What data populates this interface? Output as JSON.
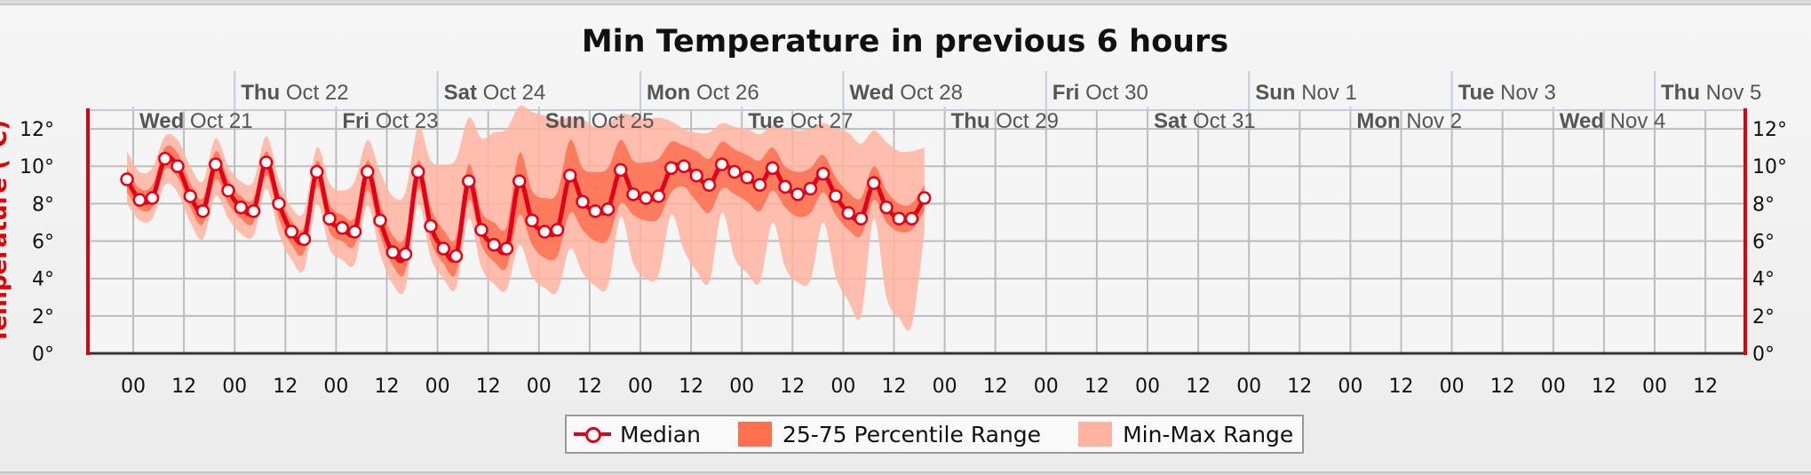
{
  "chart_data": {
    "type": "line",
    "title": "Min Temperature in previous 6 hours",
    "ylabel": "Temperature (°C)",
    "ylim": [
      0,
      13
    ],
    "yticks": [
      0,
      2,
      4,
      6,
      8,
      10,
      12
    ],
    "ytick_suffix": "°",
    "grid": true,
    "legend": "bottom-center",
    "x_hour_labels": [
      "00",
      "12",
      "00",
      "12",
      "00",
      "12",
      "00",
      "12",
      "00",
      "12",
      "00",
      "12",
      "00",
      "12",
      "00",
      "12",
      "00",
      "12",
      "00",
      "12",
      "00",
      "12",
      "00",
      "12",
      "00",
      "12",
      "00",
      "12",
      "00",
      "12",
      "00",
      "12"
    ],
    "x_start": "2020-10-21T00:00",
    "x_step_hours": 6,
    "day_labels": [
      {
        "dow": "Wed",
        "date": "Oct 21"
      },
      {
        "dow": "Thu",
        "date": "Oct 22"
      },
      {
        "dow": "Fri",
        "date": "Oct 23"
      },
      {
        "dow": "Sat",
        "date": "Oct 24"
      },
      {
        "dow": "Sun",
        "date": "Oct 25"
      },
      {
        "dow": "Mon",
        "date": "Oct 26"
      },
      {
        "dow": "Tue",
        "date": "Oct 27"
      },
      {
        "dow": "Wed",
        "date": "Oct 28"
      },
      {
        "dow": "Thu",
        "date": "Oct 29"
      },
      {
        "dow": "Fri",
        "date": "Oct 30"
      },
      {
        "dow": "Sat",
        "date": "Oct 31"
      },
      {
        "dow": "Sun",
        "date": "Nov 1"
      },
      {
        "dow": "Mon",
        "date": "Nov 2"
      },
      {
        "dow": "Tue",
        "date": "Nov 3"
      },
      {
        "dow": "Wed",
        "date": "Nov 4"
      },
      {
        "dow": "Thu",
        "date": "Nov 5"
      }
    ],
    "series": [
      {
        "name": "Median",
        "values": [
          9.3,
          8.2,
          8.3,
          10.4,
          10.0,
          8.4,
          7.6,
          10.1,
          8.7,
          7.8,
          7.6,
          10.2,
          8.0,
          6.5,
          6.1,
          9.7,
          7.2,
          6.7,
          6.5,
          9.7,
          7.1,
          5.4,
          5.3,
          9.7,
          6.8,
          5.6,
          5.2,
          9.2,
          6.6,
          5.8,
          5.6,
          9.2,
          7.1,
          6.5,
          6.6,
          9.5,
          8.1,
          7.6,
          7.7,
          9.8,
          8.5,
          8.3,
          8.4,
          9.9,
          10.0,
          9.5,
          9.0,
          10.1,
          9.7,
          9.4,
          9.0,
          9.9,
          8.9,
          8.5,
          8.8,
          9.6,
          8.4,
          7.5,
          7.2,
          9.1,
          7.8,
          7.2,
          7.2,
          8.3
        ]
      },
      {
        "name": "25-75 Percentile Range",
        "low": [
          8.6,
          7.7,
          7.8,
          9.8,
          9.4,
          7.8,
          6.9,
          9.3,
          8.0,
          7.2,
          7.0,
          9.5,
          7.2,
          5.8,
          5.4,
          8.9,
          6.5,
          6.0,
          5.8,
          8.7,
          6.3,
          4.7,
          4.4,
          8.8,
          6.0,
          4.8,
          4.3,
          8.2,
          5.8,
          4.9,
          4.6,
          7.4,
          5.8,
          5.1,
          5.2,
          7.5,
          6.6,
          6.0,
          6.1,
          8.0,
          7.4,
          7.1,
          7.2,
          8.6,
          8.9,
          8.1,
          7.5,
          8.8,
          8.5,
          8.1,
          7.6,
          8.7,
          7.8,
          7.3,
          7.5,
          8.6,
          7.4,
          6.6,
          6.3,
          8.2,
          7.0,
          6.5,
          6.6,
          7.6
        ],
        "high": [
          9.9,
          8.8,
          9.0,
          11.0,
          10.7,
          9.1,
          8.3,
          10.8,
          9.3,
          8.4,
          8.3,
          10.8,
          8.6,
          7.1,
          6.8,
          10.3,
          8.0,
          7.4,
          7.3,
          10.3,
          8.0,
          6.3,
          6.3,
          10.3,
          7.8,
          6.6,
          6.2,
          10.1,
          7.6,
          7.0,
          6.8,
          10.7,
          8.7,
          8.3,
          8.6,
          11.4,
          9.9,
          9.7,
          9.9,
          11.4,
          10.3,
          10.2,
          10.4,
          11.3,
          11.1,
          10.8,
          10.4,
          11.3,
          10.9,
          10.6,
          10.3,
          11.0,
          10.0,
          9.7,
          9.9,
          10.6,
          9.4,
          8.6,
          8.3,
          10.0,
          8.7,
          8.0,
          8.0,
          9.0
        ]
      },
      {
        "name": "Min-Max Range",
        "low": [
          8.0,
          7.1,
          7.2,
          9.0,
          8.6,
          7.0,
          6.1,
          8.4,
          7.2,
          6.4,
          6.3,
          8.8,
          6.4,
          5.0,
          4.5,
          8.0,
          5.6,
          5.0,
          4.8,
          7.9,
          5.3,
          3.7,
          3.5,
          8.0,
          5.1,
          4.0,
          3.5,
          7.2,
          4.6,
          3.7,
          3.4,
          5.8,
          4.1,
          3.5,
          3.3,
          5.6,
          4.3,
          3.6,
          3.6,
          7.3,
          4.8,
          4.0,
          4.2,
          7.4,
          5.5,
          4.4,
          3.8,
          7.5,
          5.1,
          4.3,
          3.8,
          7.0,
          4.6,
          3.8,
          3.9,
          7.0,
          4.1,
          2.8,
          2.0,
          7.2,
          3.0,
          1.9,
          1.5,
          6.5
        ],
        "high": [
          10.8,
          9.7,
          9.9,
          11.6,
          11.4,
          10.0,
          9.2,
          11.5,
          10.0,
          9.2,
          9.2,
          11.6,
          9.3,
          7.8,
          7.6,
          11.0,
          9.1,
          8.7,
          9.2,
          11.4,
          9.7,
          8.4,
          8.6,
          12.1,
          10.3,
          10.1,
          10.4,
          12.6,
          11.5,
          11.8,
          12.0,
          13.2,
          12.9,
          12.7,
          12.5,
          12.6,
          12.5,
          12.1,
          12.3,
          12.8,
          12.7,
          12.5,
          12.6,
          12.4,
          12.0,
          11.8,
          11.8,
          12.3,
          12.1,
          12.0,
          11.7,
          12.2,
          12.0,
          11.9,
          12.0,
          12.3,
          12.0,
          11.8,
          11.2,
          11.9,
          11.3,
          10.8,
          10.8,
          11.0
        ]
      }
    ],
    "colors": {
      "median": "#e0001a",
      "iqr": "#ff7050",
      "minmax": "#ffb3a0",
      "axis_accent": "#e00010",
      "grid": "#bdbdbd"
    }
  }
}
